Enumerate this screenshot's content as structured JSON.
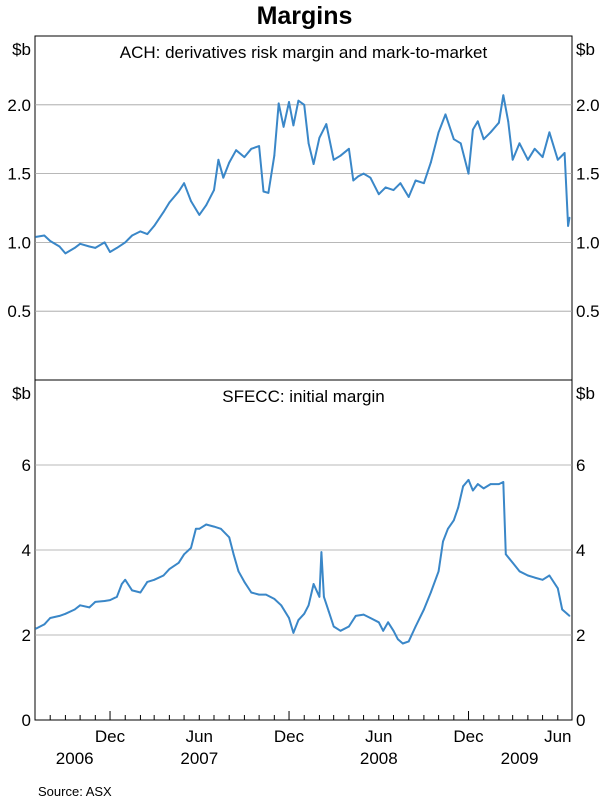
{
  "title": "Margins",
  "source": "Source: ASX",
  "chart_data": [
    {
      "type": "line",
      "title": "ACH: derivatives risk margin and mark-to-market",
      "ylabel": "$b",
      "ylim": [
        0,
        2.5
      ],
      "yticks": [
        "0.5",
        "1.0",
        "1.5",
        "2.0"
      ],
      "ytick_values": [
        0.5,
        1.0,
        1.5,
        2.0
      ],
      "grid": true,
      "series": [
        {
          "color": "#3a87c8",
          "points": [
            [
              "2006-07-03",
              1.04
            ],
            [
              "2006-07-20",
              1.05
            ],
            [
              "2006-08-01",
              1.01
            ],
            [
              "2006-08-20",
              0.97
            ],
            [
              "2006-09-01",
              0.92
            ],
            [
              "2006-09-20",
              0.96
            ],
            [
              "2006-10-01",
              0.99
            ],
            [
              "2006-10-20",
              0.97
            ],
            [
              "2006-11-01",
              0.96
            ],
            [
              "2006-11-20",
              1.0
            ],
            [
              "2006-12-01",
              0.93
            ],
            [
              "2006-12-15",
              0.96
            ],
            [
              "2007-01-01",
              1.0
            ],
            [
              "2007-01-15",
              1.05
            ],
            [
              "2007-02-01",
              1.08
            ],
            [
              "2007-02-15",
              1.06
            ],
            [
              "2007-03-01",
              1.12
            ],
            [
              "2007-03-20",
              1.22
            ],
            [
              "2007-04-01",
              1.29
            ],
            [
              "2007-04-20",
              1.37
            ],
            [
              "2007-05-01",
              1.43
            ],
            [
              "2007-05-15",
              1.3
            ],
            [
              "2007-06-01",
              1.2
            ],
            [
              "2007-06-15",
              1.27
            ],
            [
              "2007-07-01",
              1.38
            ],
            [
              "2007-07-10",
              1.6
            ],
            [
              "2007-07-20",
              1.47
            ],
            [
              "2007-08-01",
              1.58
            ],
            [
              "2007-08-15",
              1.67
            ],
            [
              "2007-09-01",
              1.62
            ],
            [
              "2007-09-15",
              1.68
            ],
            [
              "2007-10-01",
              1.7
            ],
            [
              "2007-10-10",
              1.37
            ],
            [
              "2007-10-20",
              1.36
            ],
            [
              "2007-11-01",
              1.63
            ],
            [
              "2007-11-10",
              2.01
            ],
            [
              "2007-11-20",
              1.84
            ],
            [
              "2007-12-01",
              2.02
            ],
            [
              "2007-12-10",
              1.85
            ],
            [
              "2007-12-20",
              2.03
            ],
            [
              "2008-01-01",
              2.0
            ],
            [
              "2008-01-10",
              1.72
            ],
            [
              "2008-01-20",
              1.57
            ],
            [
              "2008-02-01",
              1.76
            ],
            [
              "2008-02-15",
              1.86
            ],
            [
              "2008-03-01",
              1.6
            ],
            [
              "2008-03-15",
              1.63
            ],
            [
              "2008-04-01",
              1.68
            ],
            [
              "2008-04-10",
              1.45
            ],
            [
              "2008-04-20",
              1.48
            ],
            [
              "2008-05-01",
              1.5
            ],
            [
              "2008-05-15",
              1.47
            ],
            [
              "2008-06-01",
              1.35
            ],
            [
              "2008-06-15",
              1.4
            ],
            [
              "2008-07-01",
              1.38
            ],
            [
              "2008-07-15",
              1.43
            ],
            [
              "2008-08-01",
              1.33
            ],
            [
              "2008-08-15",
              1.45
            ],
            [
              "2008-09-01",
              1.43
            ],
            [
              "2008-09-15",
              1.58
            ],
            [
              "2008-10-01",
              1.8
            ],
            [
              "2008-10-15",
              1.93
            ],
            [
              "2008-11-01",
              1.75
            ],
            [
              "2008-11-15",
              1.72
            ],
            [
              "2008-12-01",
              1.5
            ],
            [
              "2008-12-10",
              1.82
            ],
            [
              "2008-12-20",
              1.88
            ],
            [
              "2009-01-01",
              1.75
            ],
            [
              "2009-01-15",
              1.8
            ],
            [
              "2009-02-01",
              1.87
            ],
            [
              "2009-02-10",
              2.07
            ],
            [
              "2009-02-20",
              1.88
            ],
            [
              "2009-03-01",
              1.6
            ],
            [
              "2009-03-15",
              1.72
            ],
            [
              "2009-04-01",
              1.6
            ],
            [
              "2009-04-15",
              1.68
            ],
            [
              "2009-05-01",
              1.62
            ],
            [
              "2009-05-15",
              1.8
            ],
            [
              "2009-06-01",
              1.6
            ],
            [
              "2009-06-15",
              1.65
            ],
            [
              "2009-06-22",
              1.12
            ],
            [
              "2009-06-25",
              1.18
            ]
          ]
        }
      ]
    },
    {
      "type": "line",
      "title": "SFECC: initial margin",
      "ylabel": "$b",
      "ylim": [
        0,
        8
      ],
      "yticks": [
        "0",
        "2",
        "4",
        "6"
      ],
      "ytick_values": [
        0,
        2,
        4,
        6
      ],
      "grid": true,
      "x_labels": [
        "Dec",
        "Jun",
        "Dec",
        "Jun",
        "Dec",
        "Jun"
      ],
      "x_label_dates": [
        "2006-12-01",
        "2007-06-01",
        "2007-12-01",
        "2008-06-01",
        "2008-12-01",
        "2009-06-01"
      ],
      "year_labels": [
        "2006",
        "2007",
        "2008",
        "2009"
      ],
      "year_label_dates": [
        "2006-09-20",
        "2007-06-01",
        "2008-06-01",
        "2009-03-15"
      ],
      "series": [
        {
          "color": "#3a87c8",
          "points": [
            [
              "2006-07-03",
              2.15
            ],
            [
              "2006-07-20",
              2.25
            ],
            [
              "2006-08-01",
              2.4
            ],
            [
              "2006-08-20",
              2.45
            ],
            [
              "2006-09-01",
              2.5
            ],
            [
              "2006-09-20",
              2.6
            ],
            [
              "2006-10-01",
              2.7
            ],
            [
              "2006-10-20",
              2.65
            ],
            [
              "2006-11-01",
              2.78
            ],
            [
              "2006-11-20",
              2.8
            ],
            [
              "2006-12-01",
              2.82
            ],
            [
              "2006-12-15",
              2.9
            ],
            [
              "2006-12-25",
              3.2
            ],
            [
              "2007-01-01",
              3.3
            ],
            [
              "2007-01-15",
              3.05
            ],
            [
              "2007-02-01",
              3.0
            ],
            [
              "2007-02-15",
              3.25
            ],
            [
              "2007-03-01",
              3.3
            ],
            [
              "2007-03-20",
              3.4
            ],
            [
              "2007-04-01",
              3.55
            ],
            [
              "2007-04-20",
              3.7
            ],
            [
              "2007-05-01",
              3.9
            ],
            [
              "2007-05-15",
              4.05
            ],
            [
              "2007-05-25",
              4.5
            ],
            [
              "2007-06-01",
              4.5
            ],
            [
              "2007-06-15",
              4.6
            ],
            [
              "2007-07-01",
              4.55
            ],
            [
              "2007-07-15",
              4.5
            ],
            [
              "2007-08-01",
              4.3
            ],
            [
              "2007-08-10",
              3.9
            ],
            [
              "2007-08-20",
              3.5
            ],
            [
              "2007-09-01",
              3.25
            ],
            [
              "2007-09-15",
              3.0
            ],
            [
              "2007-10-01",
              2.95
            ],
            [
              "2007-10-15",
              2.95
            ],
            [
              "2007-11-01",
              2.85
            ],
            [
              "2007-11-15",
              2.7
            ],
            [
              "2007-12-01",
              2.4
            ],
            [
              "2007-12-10",
              2.05
            ],
            [
              "2007-12-20",
              2.35
            ],
            [
              "2008-01-01",
              2.5
            ],
            [
              "2008-01-10",
              2.7
            ],
            [
              "2008-01-20",
              3.2
            ],
            [
              "2008-02-01",
              2.9
            ],
            [
              "2008-02-05",
              3.95
            ],
            [
              "2008-02-10",
              2.9
            ],
            [
              "2008-02-20",
              2.55
            ],
            [
              "2008-03-01",
              2.2
            ],
            [
              "2008-03-15",
              2.1
            ],
            [
              "2008-04-01",
              2.2
            ],
            [
              "2008-04-15",
              2.45
            ],
            [
              "2008-05-01",
              2.48
            ],
            [
              "2008-05-15",
              2.4
            ],
            [
              "2008-06-01",
              2.3
            ],
            [
              "2008-06-10",
              2.1
            ],
            [
              "2008-06-20",
              2.3
            ],
            [
              "2008-07-01",
              2.1
            ],
            [
              "2008-07-10",
              1.9
            ],
            [
              "2008-07-20",
              1.8
            ],
            [
              "2008-08-01",
              1.85
            ],
            [
              "2008-08-15",
              2.2
            ],
            [
              "2008-09-01",
              2.6
            ],
            [
              "2008-09-15",
              3.0
            ],
            [
              "2008-10-01",
              3.5
            ],
            [
              "2008-10-10",
              4.2
            ],
            [
              "2008-10-20",
              4.5
            ],
            [
              "2008-11-01",
              4.7
            ],
            [
              "2008-11-10",
              5.0
            ],
            [
              "2008-11-20",
              5.5
            ],
            [
              "2008-12-01",
              5.65
            ],
            [
              "2008-12-10",
              5.4
            ],
            [
              "2008-12-20",
              5.55
            ],
            [
              "2009-01-01",
              5.45
            ],
            [
              "2009-01-15",
              5.55
            ],
            [
              "2009-02-01",
              5.55
            ],
            [
              "2009-02-10",
              5.6
            ],
            [
              "2009-02-15",
              3.9
            ],
            [
              "2009-03-01",
              3.7
            ],
            [
              "2009-03-15",
              3.5
            ],
            [
              "2009-04-01",
              3.4
            ],
            [
              "2009-04-15",
              3.35
            ],
            [
              "2009-05-01",
              3.3
            ],
            [
              "2009-05-15",
              3.4
            ],
            [
              "2009-06-01",
              3.1
            ],
            [
              "2009-06-10",
              2.6
            ],
            [
              "2009-06-20",
              2.5
            ],
            [
              "2009-06-25",
              2.45
            ]
          ]
        }
      ]
    }
  ]
}
